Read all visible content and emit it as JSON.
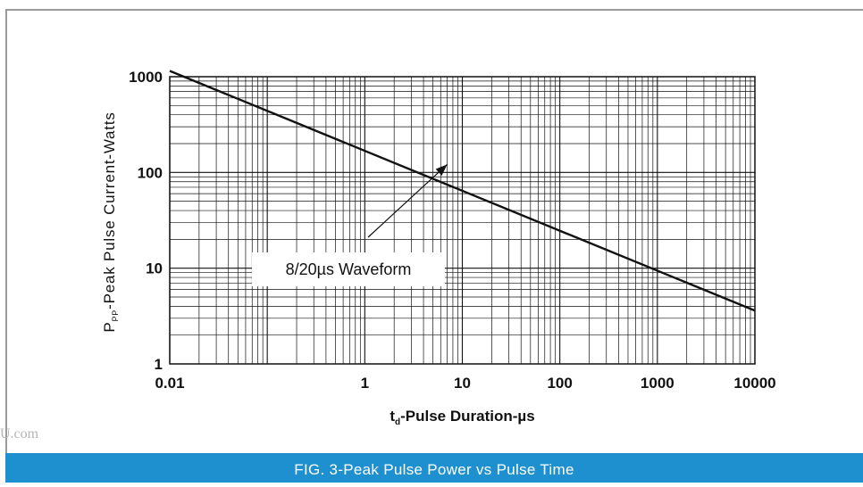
{
  "caption": "FIG. 3-Peak Pulse Power vs Pulse Time",
  "watermark": "U.com",
  "chart_data": {
    "type": "line",
    "x_scale": "log",
    "y_scale": "log",
    "xlim": [
      0.01,
      10000
    ],
    "ylim": [
      1,
      1000
    ],
    "x_ticks": [
      "0.01",
      "1",
      "10",
      "100",
      "1000",
      "10000"
    ],
    "y_ticks": [
      "1000",
      "100",
      "10",
      "1"
    ],
    "ylabel": {
      "main": "P",
      "sub": "PP",
      "rest": "-Peak Pulse  Current-Watts"
    },
    "xlabel": {
      "main": "t",
      "sub": "d",
      "rest": "-Pulse Duration-µs"
    },
    "grid": true,
    "series": [
      {
        "x": [
          0.01,
          10000
        ],
        "y": [
          1150,
          3.6
        ]
      }
    ],
    "annotations": [
      {
        "text": "8/20µs Waveform",
        "points_to": {
          "x": 7,
          "y": 135
        }
      }
    ]
  }
}
